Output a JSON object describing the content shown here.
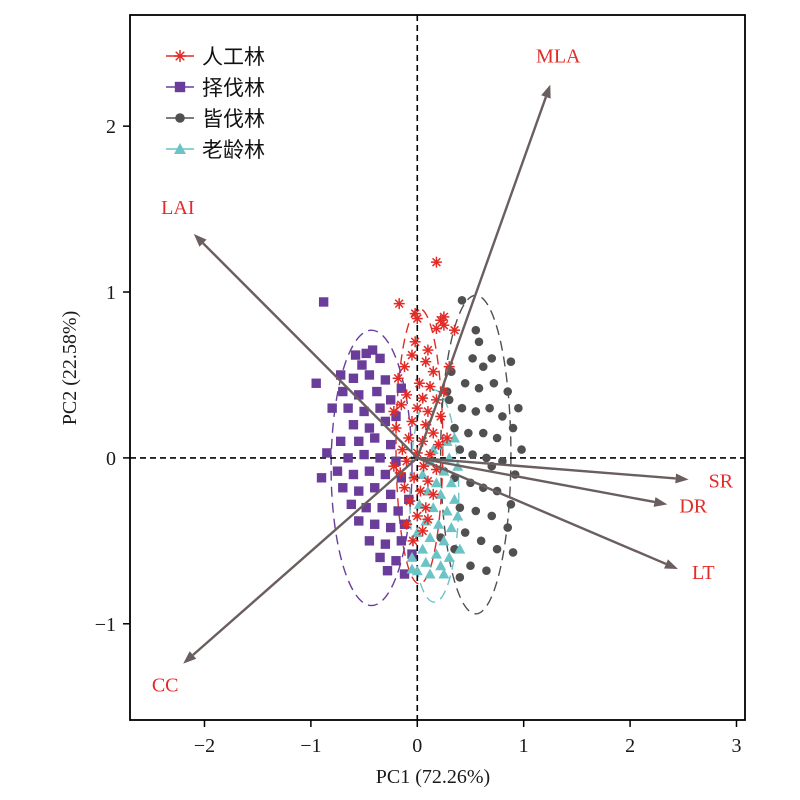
{
  "chart_data": {
    "type": "scatter",
    "subtype": "PCA biplot",
    "xlabel": "PC1 (72.26%)",
    "ylabel": "PC2 (22.58%)",
    "xlim": [
      -2.7,
      3.08
    ],
    "ylim": [
      -1.58,
      2.67
    ],
    "xticks": [
      -2,
      -1,
      0,
      1,
      2,
      3
    ],
    "yticks": [
      -1,
      0,
      1,
      2
    ],
    "xtick_labels": [
      "−2",
      "−1",
      "0",
      "1",
      "2",
      "3"
    ],
    "ytick_labels": [
      "−1",
      "0",
      "1",
      "2"
    ],
    "zero_lines": "dashed",
    "legend_position": "top-left",
    "series": [
      {
        "name": "人工林",
        "marker": "asterisk",
        "color": "#e32b27",
        "ellipse": {
          "cx": 0.02,
          "cy": 0.07,
          "rx": 0.22,
          "ry": 0.83
        },
        "points": [
          [
            0.18,
            1.18
          ],
          [
            -0.17,
            0.93
          ],
          [
            -0.02,
            0.87
          ],
          [
            0.0,
            0.84
          ],
          [
            0.22,
            0.83
          ],
          [
            0.25,
            0.85
          ],
          [
            0.35,
            0.77
          ],
          [
            0.18,
            0.78
          ],
          [
            0.25,
            0.8
          ],
          [
            -0.05,
            0.62
          ],
          [
            -0.12,
            0.55
          ],
          [
            0.08,
            0.58
          ],
          [
            0.15,
            0.52
          ],
          [
            -0.18,
            0.48
          ],
          [
            0.02,
            0.45
          ],
          [
            0.12,
            0.43
          ],
          [
            -0.1,
            0.38
          ],
          [
            0.05,
            0.36
          ],
          [
            0.18,
            0.35
          ],
          [
            -0.15,
            0.32
          ],
          [
            0.0,
            0.3
          ],
          [
            0.1,
            0.28
          ],
          [
            0.22,
            0.25
          ],
          [
            -0.05,
            0.22
          ],
          [
            0.08,
            0.2
          ],
          [
            -0.2,
            0.18
          ],
          [
            0.15,
            0.15
          ],
          [
            -0.08,
            0.12
          ],
          [
            0.05,
            0.1
          ],
          [
            0.2,
            0.08
          ],
          [
            -0.14,
            0.05
          ],
          [
            0.0,
            0.03
          ],
          [
            0.12,
            0.02
          ],
          [
            -0.1,
            -0.02
          ],
          [
            0.06,
            -0.05
          ],
          [
            0.18,
            -0.07
          ],
          [
            -0.16,
            -0.09
          ],
          [
            -0.03,
            -0.12
          ],
          [
            0.1,
            -0.14
          ],
          [
            -0.12,
            -0.18
          ],
          [
            0.03,
            -0.2
          ],
          [
            0.15,
            -0.22
          ],
          [
            -0.07,
            -0.26
          ],
          [
            0.08,
            -0.3
          ],
          [
            0.0,
            -0.35
          ],
          [
            -0.1,
            -0.4
          ],
          [
            0.05,
            -0.44
          ],
          [
            -0.04,
            -0.5
          ],
          [
            0.1,
            -0.37
          ],
          [
            -0.22,
            -0.05
          ],
          [
            0.25,
            0.4
          ],
          [
            0.28,
            0.12
          ],
          [
            -0.22,
            0.28
          ],
          [
            0.3,
            0.55
          ],
          [
            0.1,
            0.65
          ],
          [
            -0.02,
            0.7
          ]
        ]
      },
      {
        "name": "择伐林",
        "marker": "square",
        "color": "#6a3d9a",
        "ellipse": {
          "cx": -0.43,
          "cy": -0.06,
          "rx": 0.38,
          "ry": 0.83
        },
        "points": [
          [
            -0.88,
            0.94
          ],
          [
            -0.48,
            0.63
          ],
          [
            -0.42,
            0.65
          ],
          [
            -0.52,
            0.56
          ],
          [
            -0.35,
            0.6
          ],
          [
            -0.6,
            0.48
          ],
          [
            -0.45,
            0.5
          ],
          [
            -0.3,
            0.47
          ],
          [
            -0.7,
            0.4
          ],
          [
            -0.55,
            0.38
          ],
          [
            -0.38,
            0.4
          ],
          [
            -0.25,
            0.35
          ],
          [
            -0.65,
            0.3
          ],
          [
            -0.5,
            0.28
          ],
          [
            -0.35,
            0.3
          ],
          [
            -0.6,
            0.2
          ],
          [
            -0.45,
            0.18
          ],
          [
            -0.3,
            0.22
          ],
          [
            -0.2,
            0.25
          ],
          [
            -0.72,
            0.1
          ],
          [
            -0.55,
            0.1
          ],
          [
            -0.4,
            0.12
          ],
          [
            -0.25,
            0.08
          ],
          [
            -0.85,
            0.03
          ],
          [
            -0.65,
            0.0
          ],
          [
            -0.5,
            0.02
          ],
          [
            -0.35,
            0.0
          ],
          [
            -0.2,
            -0.02
          ],
          [
            -0.75,
            -0.08
          ],
          [
            -0.6,
            -0.1
          ],
          [
            -0.45,
            -0.08
          ],
          [
            -0.3,
            -0.1
          ],
          [
            -0.15,
            -0.12
          ],
          [
            -0.7,
            -0.18
          ],
          [
            -0.55,
            -0.2
          ],
          [
            -0.4,
            -0.18
          ],
          [
            -0.25,
            -0.22
          ],
          [
            -0.62,
            -0.28
          ],
          [
            -0.48,
            -0.3
          ],
          [
            -0.33,
            -0.3
          ],
          [
            -0.18,
            -0.32
          ],
          [
            -0.55,
            -0.38
          ],
          [
            -0.4,
            -0.4
          ],
          [
            -0.25,
            -0.42
          ],
          [
            -0.12,
            -0.4
          ],
          [
            -0.45,
            -0.5
          ],
          [
            -0.3,
            -0.52
          ],
          [
            -0.15,
            -0.5
          ],
          [
            -0.35,
            -0.6
          ],
          [
            -0.2,
            -0.62
          ],
          [
            -0.05,
            -0.58
          ],
          [
            -0.28,
            -0.68
          ],
          [
            -0.12,
            -0.7
          ],
          [
            -0.95,
            0.45
          ],
          [
            -0.8,
            0.3
          ],
          [
            -0.9,
            -0.12
          ],
          [
            -0.72,
            0.5
          ],
          [
            -0.58,
            0.62
          ],
          [
            -0.15,
            0.42
          ],
          [
            -0.08,
            -0.25
          ]
        ]
      },
      {
        "name": "皆伐林",
        "marker": "circle",
        "color": "#505050",
        "ellipse": {
          "cx": 0.55,
          "cy": 0.02,
          "rx": 0.33,
          "ry": 0.96
        },
        "points": [
          [
            0.42,
            0.95
          ],
          [
            0.55,
            0.77
          ],
          [
            0.7,
            0.6
          ],
          [
            0.52,
            0.6
          ],
          [
            0.62,
            0.55
          ],
          [
            0.88,
            0.58
          ],
          [
            0.32,
            0.52
          ],
          [
            0.45,
            0.45
          ],
          [
            0.58,
            0.42
          ],
          [
            0.72,
            0.45
          ],
          [
            0.85,
            0.4
          ],
          [
            0.95,
            0.3
          ],
          [
            0.3,
            0.35
          ],
          [
            0.42,
            0.3
          ],
          [
            0.55,
            0.28
          ],
          [
            0.68,
            0.3
          ],
          [
            0.8,
            0.25
          ],
          [
            0.35,
            0.18
          ],
          [
            0.48,
            0.15
          ],
          [
            0.62,
            0.15
          ],
          [
            0.75,
            0.12
          ],
          [
            0.9,
            0.18
          ],
          [
            0.98,
            0.05
          ],
          [
            0.4,
            0.05
          ],
          [
            0.52,
            0.02
          ],
          [
            0.65,
            0.0
          ],
          [
            0.8,
            -0.02
          ],
          [
            0.92,
            -0.1
          ],
          [
            0.35,
            -0.12
          ],
          [
            0.5,
            -0.15
          ],
          [
            0.62,
            -0.18
          ],
          [
            0.75,
            -0.2
          ],
          [
            0.88,
            -0.28
          ],
          [
            0.4,
            -0.3
          ],
          [
            0.55,
            -0.32
          ],
          [
            0.7,
            -0.35
          ],
          [
            0.85,
            -0.42
          ],
          [
            0.45,
            -0.45
          ],
          [
            0.6,
            -0.5
          ],
          [
            0.75,
            -0.55
          ],
          [
            0.9,
            -0.57
          ],
          [
            0.35,
            -0.55
          ],
          [
            0.5,
            -0.65
          ],
          [
            0.65,
            -0.68
          ],
          [
            0.4,
            -0.72
          ],
          [
            0.22,
            -0.48
          ],
          [
            0.28,
            0.4
          ],
          [
            0.25,
            -0.08
          ],
          [
            0.58,
            0.7
          ],
          [
            0.7,
            -0.05
          ]
        ]
      },
      {
        "name": "老龄林",
        "marker": "triangle",
        "color": "#6cc3c6",
        "ellipse": {
          "cx": 0.16,
          "cy": -0.23,
          "rx": 0.23,
          "ry": 0.64
        },
        "points": [
          [
            0.35,
            0.12
          ],
          [
            0.2,
            0.08
          ],
          [
            0.3,
            0.0
          ],
          [
            0.12,
            -0.02
          ],
          [
            0.25,
            -0.08
          ],
          [
            0.38,
            -0.05
          ],
          [
            0.05,
            -0.1
          ],
          [
            0.18,
            -0.15
          ],
          [
            0.32,
            -0.15
          ],
          [
            0.1,
            -0.2
          ],
          [
            0.22,
            -0.22
          ],
          [
            0.35,
            -0.25
          ],
          [
            0.02,
            -0.28
          ],
          [
            0.15,
            -0.3
          ],
          [
            0.28,
            -0.32
          ],
          [
            0.08,
            -0.38
          ],
          [
            0.2,
            -0.4
          ],
          [
            0.32,
            -0.42
          ],
          [
            0.0,
            -0.45
          ],
          [
            0.12,
            -0.48
          ],
          [
            0.25,
            -0.5
          ],
          [
            0.05,
            -0.55
          ],
          [
            0.18,
            -0.58
          ],
          [
            0.3,
            -0.6
          ],
          [
            -0.05,
            -0.6
          ],
          [
            0.08,
            -0.63
          ],
          [
            0.22,
            -0.65
          ],
          [
            0.0,
            -0.68
          ],
          [
            0.12,
            -0.7
          ],
          [
            0.25,
            -0.7
          ],
          [
            -0.05,
            -0.67
          ],
          [
            0.38,
            -0.35
          ],
          [
            0.4,
            -0.55
          ],
          [
            0.15,
            0.05
          ],
          [
            0.28,
            0.1
          ]
        ]
      }
    ],
    "vectors": [
      {
        "label": "MLA",
        "x": 1.25,
        "y": 2.25
      },
      {
        "label": "LAI",
        "x": -2.1,
        "y": 1.35
      },
      {
        "label": "SR",
        "x": 2.55,
        "y": -0.13
      },
      {
        "label": "DR",
        "x": 2.35,
        "y": -0.28
      },
      {
        "label": "LT",
        "x": 2.45,
        "y": -0.67
      },
      {
        "label": "CC",
        "x": -2.2,
        "y": -1.24
      }
    ]
  }
}
